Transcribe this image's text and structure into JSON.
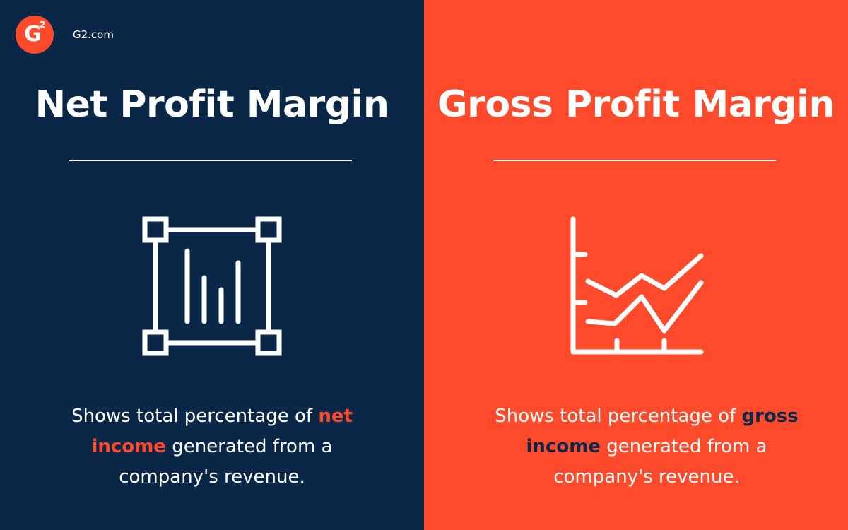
{
  "brand": {
    "logo": {
      "letter": "G",
      "superscript": "2"
    },
    "site": "G2.com"
  },
  "panels": [
    {
      "title": "Net Profit Margin",
      "description": {
        "before": "Shows total percentage of",
        "highlight": "net income",
        "after": "generated from a company's revenue."
      }
    },
    {
      "title": "Gross Profit Margin",
      "description": {
        "before": "Shows total percentage of",
        "highlight": "gross income",
        "after": "generated from a company's revenue."
      }
    }
  ]
}
